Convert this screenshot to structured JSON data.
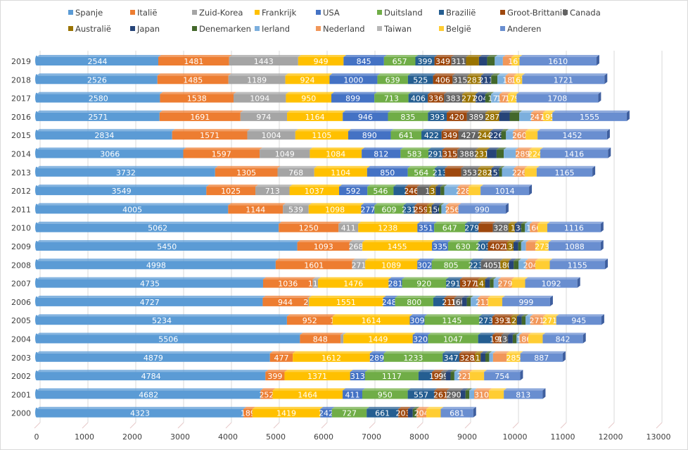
{
  "chart_data": {
    "type": "bar",
    "orientation": "horizontal",
    "stacked": true,
    "style": "3d-cylinder-bars",
    "title": "",
    "xlabel": "",
    "ylabel": "",
    "xlim": [
      0,
      13000
    ],
    "x_ticks": [
      "0",
      "1000",
      "2000",
      "3000",
      "4000",
      "5000",
      "6000",
      "7000",
      "8000",
      "9000",
      "10000",
      "11000",
      "12000",
      "13000"
    ],
    "grid": "vertical",
    "legend_position": "top",
    "categories": [
      "2019",
      "2018",
      "2017",
      "2016",
      "2015",
      "2014",
      "2013",
      "2012",
      "2011",
      "2010",
      "2009",
      "2008",
      "2007",
      "2006",
      "2005",
      "2004",
      "2003",
      "2002",
      "2001",
      "2000"
    ],
    "series": [
      {
        "name": "Spanje",
        "color": "#5B9BD5",
        "values": [
          2544,
          2526,
          2580,
          2571,
          2834,
          3066,
          3732,
          3549,
          4005,
          5062,
          5450,
          4998,
          4735,
          4727,
          5234,
          5506,
          4879,
          4784,
          4682,
          4323
        ],
        "labels": [
          true,
          true,
          true,
          true,
          true,
          true,
          true,
          true,
          true,
          true,
          true,
          true,
          true,
          true,
          true,
          true,
          true,
          true,
          true,
          true
        ]
      },
      {
        "name": "Italië",
        "color": "#ED7D31",
        "values": [
          1481,
          1485,
          1538,
          1691,
          1571,
          1597,
          1305,
          1025,
          1144,
          1250,
          1093,
          1601,
          1036,
          944,
          952,
          848,
          477,
          399,
          252,
          189
        ],
        "labels": [
          true,
          true,
          true,
          true,
          true,
          true,
          true,
          true,
          true,
          true,
          true,
          true,
          true,
          true,
          true,
          true,
          true,
          true,
          true,
          true
        ]
      },
      {
        "name": "Zuid-Korea",
        "color": "#A5A5A5",
        "values": [
          1443,
          1189,
          1094,
          974,
          1004,
          1049,
          768,
          713,
          539,
          411,
          268,
          271,
          112,
          23,
          1,
          60,
          0,
          0,
          0,
          0
        ],
        "labels": [
          true,
          true,
          true,
          true,
          true,
          true,
          true,
          true,
          true,
          true,
          true,
          true,
          true,
          true,
          true,
          false,
          false,
          false,
          false,
          false
        ]
      },
      {
        "name": "Frankrijk",
        "color": "#FFC000",
        "values": [
          949,
          924,
          950,
          1164,
          1105,
          1084,
          1104,
          1037,
          1098,
          1238,
          1455,
          1089,
          1476,
          1551,
          1614,
          1449,
          1612,
          1371,
          1464,
          1419
        ],
        "labels": [
          true,
          true,
          true,
          true,
          true,
          true,
          true,
          true,
          true,
          true,
          true,
          true,
          true,
          true,
          true,
          true,
          true,
          true,
          true,
          true
        ]
      },
      {
        "name": "USA",
        "color": "#4472C4",
        "values": [
          845,
          1000,
          899,
          946,
          890,
          812,
          850,
          592,
          277,
          351,
          335,
          302,
          281,
          248,
          309,
          320,
          289,
          313,
          411,
          242
        ],
        "labels": [
          true,
          true,
          true,
          true,
          true,
          true,
          true,
          true,
          true,
          true,
          true,
          true,
          true,
          true,
          true,
          true,
          true,
          true,
          true,
          true
        ]
      },
      {
        "name": "Duitsland",
        "color": "#70AD47",
        "values": [
          657,
          639,
          713,
          835,
          641,
          583,
          564,
          546,
          609,
          647,
          630,
          805,
          920,
          800,
          1145,
          1047,
          1233,
          1117,
          950,
          727
        ],
        "labels": [
          true,
          true,
          true,
          true,
          true,
          true,
          true,
          true,
          true,
          true,
          true,
          true,
          true,
          true,
          true,
          true,
          true,
          true,
          true,
          true
        ]
      },
      {
        "name": "Brazilië",
        "color": "#255E91",
        "values": [
          399,
          525,
          406,
          393,
          422,
          291,
          213,
          250,
          231,
          279,
          203,
          223,
          291,
          230,
          273,
          300,
          347,
          280,
          557,
          661
        ],
        "labels": [
          true,
          true,
          true,
          true,
          true,
          true,
          true,
          false,
          true,
          true,
          true,
          true,
          true,
          false,
          true,
          false,
          true,
          false,
          true,
          true
        ]
      },
      {
        "name": "Groot-Brittanië",
        "color": "#9E480E",
        "values": [
          349,
          406,
          336,
          420,
          349,
          315,
          340,
          246,
          259,
          300,
          402,
          0,
          377,
          211,
          393,
          190,
          328,
          191,
          261,
          203
        ],
        "labels": [
          true,
          true,
          true,
          true,
          true,
          true,
          false,
          true,
          true,
          false,
          true,
          false,
          true,
          true,
          true,
          true,
          true,
          true,
          true,
          true
        ]
      },
      {
        "name": "Canada",
        "color": "#636363",
        "values": [
          311,
          315,
          383,
          389,
          427,
          388,
          353,
          250,
          0,
          328,
          0,
          405,
          0,
          160,
          0,
          134,
          0,
          99,
          290,
          0
        ],
        "labels": [
          true,
          true,
          true,
          true,
          true,
          true,
          true,
          false,
          false,
          true,
          false,
          true,
          false,
          true,
          false,
          true,
          false,
          true,
          true,
          false
        ]
      },
      {
        "name": "Australië",
        "color": "#997300",
        "values": [
          270,
          283,
          277,
          287,
          244,
          231,
          282,
          135,
          100,
          130,
          134,
          180,
          147,
          0,
          120,
          0,
          117,
          0,
          0,
          0
        ],
        "labels": [
          false,
          true,
          true,
          true,
          true,
          true,
          true,
          true,
          false,
          false,
          true,
          true,
          true,
          false,
          true,
          false,
          true,
          false,
          false,
          false
        ]
      },
      {
        "name": "Japan",
        "color": "#264478",
        "values": [
          170,
          211,
          204,
          220,
          226,
          200,
          157,
          100,
          150,
          134,
          100,
          100,
          100,
          100,
          100,
          100,
          100,
          100,
          100,
          100
        ],
        "labels": [
          false,
          true,
          true,
          false,
          true,
          false,
          true,
          false,
          true,
          true,
          false,
          false,
          false,
          false,
          false,
          false,
          false,
          false,
          false,
          false
        ]
      },
      {
        "name": "Denemarken",
        "color": "#43682B",
        "values": [
          160,
          130,
          120,
          200,
          100,
          150,
          60,
          80,
          50,
          80,
          60,
          100,
          80,
          80,
          80,
          80,
          80,
          80,
          80,
          80
        ],
        "labels": [
          false,
          false,
          false,
          false,
          false,
          false,
          false,
          false,
          false,
          false,
          false,
          false,
          false,
          false,
          false,
          false,
          false,
          false,
          false,
          false
        ]
      },
      {
        "name": "Ierland",
        "color": "#7CAFDD",
        "values": [
          170,
          170,
          177,
          250,
          150,
          250,
          250,
          280,
          100,
          100,
          100,
          150,
          100,
          150,
          100,
          60,
          80,
          100,
          100,
          0
        ],
        "labels": [
          false,
          false,
          true,
          false,
          false,
          false,
          false,
          false,
          false,
          false,
          false,
          false,
          false,
          false,
          false,
          false,
          false,
          false,
          false,
          false
        ]
      },
      {
        "name": "Nederland",
        "color": "#F1975A",
        "values": [
          180,
          181,
          177,
          247,
          260,
          289,
          226,
          228,
          256,
          166,
          200,
          204,
          279,
          211,
          271,
          186,
          285,
          221,
          310,
          204
        ],
        "labels": [
          false,
          true,
          true,
          true,
          true,
          true,
          true,
          true,
          true,
          true,
          false,
          true,
          true,
          true,
          true,
          true,
          false,
          true,
          true,
          true
        ]
      },
      {
        "name": "Taiwan",
        "color": "#B7B7B7",
        "values": [
          0,
          0,
          0,
          0,
          0,
          0,
          0,
          0,
          0,
          0,
          0,
          0,
          0,
          0,
          0,
          0,
          0,
          0,
          0,
          0
        ],
        "labels": [
          false,
          false,
          false,
          false,
          false,
          false,
          false,
          false,
          false,
          false,
          false,
          false,
          false,
          false,
          false,
          false,
          false,
          false,
          false,
          false
        ]
      },
      {
        "name": "België",
        "color": "#FFCD33",
        "values": [
          167,
          167,
          179,
          195,
          250,
          224,
          250,
          250,
          0,
          200,
          273,
          300,
          279,
          300,
          271,
          300,
          285,
          300,
          310,
          300
        ],
        "labels": [
          true,
          true,
          true,
          true,
          false,
          true,
          false,
          false,
          false,
          false,
          true,
          false,
          false,
          false,
          true,
          false,
          true,
          false,
          false,
          false
        ]
      },
      {
        "name": "Anderen",
        "color": "#698ED0",
        "values": [
          1610,
          1721,
          1708,
          1555,
          1452,
          1416,
          1165,
          1014,
          990,
          1116,
          1088,
          1155,
          1092,
          999,
          945,
          842,
          887,
          754,
          813,
          681
        ],
        "labels": [
          true,
          true,
          true,
          true,
          true,
          true,
          true,
          true,
          true,
          true,
          true,
          true,
          true,
          true,
          true,
          true,
          true,
          true,
          true,
          true
        ]
      }
    ]
  }
}
